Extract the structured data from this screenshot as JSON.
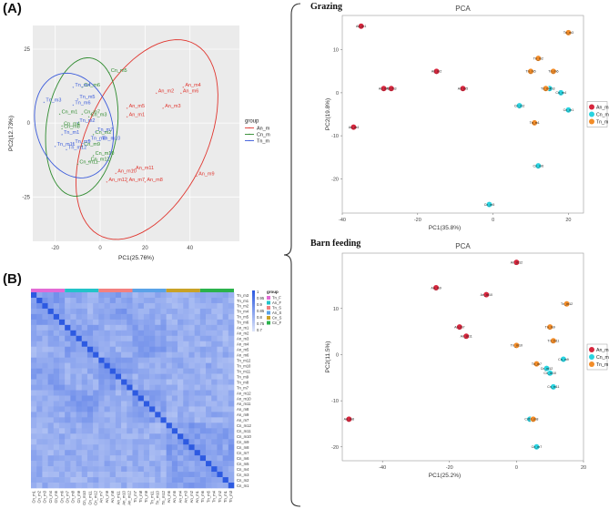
{
  "panels": {
    "a_label": "(A)",
    "b_label": "(B)"
  },
  "sections": {
    "grazing": "Grazing",
    "barn": "Barn feeding"
  },
  "chart_data": [
    {
      "id": "pca_a",
      "type": "scatter",
      "title": "",
      "xlabel": "PC1(25.76%)",
      "ylabel": "PC2(12.73%)",
      "xlim": [
        -30,
        62
      ],
      "ylim": [
        -40,
        33
      ],
      "xticks": [
        -20,
        0,
        20,
        40
      ],
      "yticks": [
        -25,
        0,
        25
      ],
      "legend_title": "group",
      "series": [
        {
          "name": "An_m",
          "color": "#e0362f",
          "points": [
            {
              "label": "An_m1",
              "x": 12,
              "y": 2
            },
            {
              "label": "An_m2",
              "x": 25,
              "y": 10
            },
            {
              "label": "An_m3",
              "x": 28,
              "y": 5
            },
            {
              "label": "An_m4",
              "x": 37,
              "y": 12
            },
            {
              "label": "An_m5",
              "x": 12,
              "y": 5
            },
            {
              "label": "An_m6",
              "x": 36,
              "y": 10
            },
            {
              "label": "An_m7",
              "x": 12,
              "y": -20
            },
            {
              "label": "An_m8",
              "x": 20,
              "y": -20
            },
            {
              "label": "An_m9",
              "x": 43,
              "y": -18
            },
            {
              "label": "An_m10",
              "x": 7,
              "y": -17
            },
            {
              "label": "An_m11",
              "x": 15,
              "y": -16
            },
            {
              "label": "An_m12",
              "x": 3,
              "y": -20
            }
          ]
        },
        {
          "name": "Cn_m",
          "color": "#2e8b2e",
          "points": [
            {
              "label": "Cn_m1",
              "x": -18,
              "y": 3
            },
            {
              "label": "Cn_m2",
              "x": -3,
              "y": -4
            },
            {
              "label": "Cn_m3",
              "x": -5,
              "y": 2
            },
            {
              "label": "Cn_m4",
              "x": -17,
              "y": -1
            },
            {
              "label": "Cn_m5",
              "x": 4,
              "y": 17
            },
            {
              "label": "Cn_m6",
              "x": -8,
              "y": 12
            },
            {
              "label": "Cn_m7",
              "x": -8,
              "y": 3
            },
            {
              "label": "Cn_m8",
              "x": -17,
              "y": -2
            },
            {
              "label": "Cn_m9",
              "x": -8,
              "y": -8
            },
            {
              "label": "Cn_m10",
              "x": -3,
              "y": -11
            },
            {
              "label": "Cn_m11",
              "x": -10,
              "y": -14
            },
            {
              "label": "Cn_m12",
              "x": -5,
              "y": -13
            }
          ]
        },
        {
          "name": "Tn_m",
          "color": "#3b5bdb",
          "points": [
            {
              "label": "Tn_m1",
              "x": -17,
              "y": -4
            },
            {
              "label": "Tn_m2",
              "x": -10,
              "y": 0
            },
            {
              "label": "Tn_m3",
              "x": -25,
              "y": 7
            },
            {
              "label": "Tn_m4",
              "x": -12,
              "y": 12
            },
            {
              "label": "Tn_m5",
              "x": -10,
              "y": 8
            },
            {
              "label": "Tn_m6",
              "x": -12,
              "y": 6
            },
            {
              "label": "Tn_m7",
              "x": -2,
              "y": -3
            },
            {
              "label": "Tn_m8",
              "x": -5,
              "y": -6
            },
            {
              "label": "Tn_m9",
              "x": -12,
              "y": -7
            },
            {
              "label": "Tn_m10",
              "x": 0,
              "y": -6
            },
            {
              "label": "Tn_m11",
              "x": -20,
              "y": -8
            },
            {
              "label": "Tn_m12",
              "x": -15,
              "y": -9
            }
          ]
        }
      ]
    },
    {
      "id": "heatmap_b",
      "type": "heatmap",
      "legend_title": "group",
      "scale_ticks": [
        "1",
        "0.95",
        "0.9",
        "0.85",
        "0.8",
        "0.75",
        "0.7"
      ],
      "groups": [
        {
          "name": "Tn_F",
          "color": "#e36bd5"
        },
        {
          "name": "An_F",
          "color": "#23c3c9"
        },
        {
          "name": "Tn_S",
          "color": "#f28080"
        },
        {
          "name": "An_S",
          "color": "#5aa3e8"
        },
        {
          "name": "Cn_S",
          "color": "#c9a227"
        },
        {
          "name": "Cn_F",
          "color": "#2bb24c"
        }
      ],
      "row_labels": [
        "Tn_m3",
        "Tn_m1",
        "Tn_m2",
        "Tn_m4",
        "Tn_m5",
        "Tn_m6",
        "An_m1",
        "An_m2",
        "An_m3",
        "An_m4",
        "An_m5",
        "An_m6",
        "Tn_m12",
        "Tn_m10",
        "Tn_m11",
        "Tn_m9",
        "Tn_m8",
        "Tn_m7",
        "An_m12",
        "An_m10",
        "An_m11",
        "An_m8",
        "An_m9",
        "An_m7",
        "Cn_m12",
        "Cn_m11",
        "Cn_m10",
        "Cn_m9",
        "Cn_m8",
        "Cn_m7",
        "Cn_m6",
        "Cn_m5",
        "Cn_m4",
        "Cn_m3",
        "Cn_m2",
        "Cn_m1"
      ]
    },
    {
      "id": "pca_grazing",
      "type": "scatter",
      "title": "PCA",
      "xlabel": "PC1(35.8%)",
      "ylabel": "PC2(19.8%)",
      "xlim": [
        -40,
        24
      ],
      "ylim": [
        -28,
        18
      ],
      "xticks": [
        -40,
        -20,
        0,
        20
      ],
      "yticks": [
        -20,
        -10,
        0,
        10
      ],
      "series": [
        {
          "name": "An_m",
          "color": "#d7263d",
          "points": [
            {
              "label": "An_m1",
              "x": -35,
              "y": 15.5
            },
            {
              "label": "An_m2",
              "x": -15,
              "y": 5
            },
            {
              "label": "An_m3",
              "x": -27,
              "y": 1
            },
            {
              "label": "An_m4",
              "x": -37,
              "y": -8
            },
            {
              "label": "An_m5",
              "x": -8,
              "y": 1
            },
            {
              "label": "An_m6",
              "x": -29,
              "y": 1
            }
          ]
        },
        {
          "name": "Cn_m",
          "color": "#29d3e0",
          "points": [
            {
              "label": "Cn_m1",
              "x": 20,
              "y": -4
            },
            {
              "label": "Cn_m2",
              "x": 7,
              "y": -3
            },
            {
              "label": "Cn_m3",
              "x": 15,
              "y": 1
            },
            {
              "label": "Cn_m4",
              "x": 18,
              "y": 0
            },
            {
              "label": "Cn_m5",
              "x": -1,
              "y": -26
            },
            {
              "label": "Cn_m6",
              "x": 12,
              "y": -17
            }
          ]
        },
        {
          "name": "Tn_m",
          "color": "#f28c28",
          "points": [
            {
              "label": "Tn_m1",
              "x": 11,
              "y": -7
            },
            {
              "label": "Tn_m2",
              "x": 12,
              "y": 8
            },
            {
              "label": "Tn_m3",
              "x": 20,
              "y": 14
            },
            {
              "label": "Tn_m4",
              "x": 14,
              "y": 1
            },
            {
              "label": "Tn_m5",
              "x": 10,
              "y": 5
            },
            {
              "label": "Tn_m6",
              "x": 16,
              "y": 5
            }
          ]
        }
      ]
    },
    {
      "id": "pca_barn",
      "type": "scatter",
      "title": "PCA",
      "xlabel": "PC1(25.2%)",
      "ylabel": "PC2(11.5%)",
      "xlim": [
        -52,
        20
      ],
      "ylim": [
        -23,
        22
      ],
      "xticks": [
        -40,
        -20,
        0,
        20
      ],
      "yticks": [
        -20,
        -10,
        0,
        10
      ],
      "series": [
        {
          "name": "An_m",
          "color": "#d7263d",
          "points": [
            {
              "label": "An_m7",
              "x": -17,
              "y": 6
            },
            {
              "label": "An_m8",
              "x": -50,
              "y": -14
            },
            {
              "label": "An_m9",
              "x": -24,
              "y": 14.5
            },
            {
              "label": "An_m10",
              "x": -9,
              "y": 13
            },
            {
              "label": "An_m11",
              "x": -15,
              "y": 4
            },
            {
              "label": "An_m12",
              "x": 0,
              "y": 20
            }
          ]
        },
        {
          "name": "Cn_m",
          "color": "#29d3e0",
          "points": [
            {
              "label": "Cn_m7",
              "x": 6,
              "y": -20
            },
            {
              "label": "Cn_m8",
              "x": 4,
              "y": -14
            },
            {
              "label": "Cn_m9",
              "x": 14,
              "y": -1
            },
            {
              "label": "Cn_m10",
              "x": 10,
              "y": -4
            },
            {
              "label": "Cn_m11",
              "x": 11,
              "y": -7
            },
            {
              "label": "Cn_m12",
              "x": 9,
              "y": -3
            }
          ]
        },
        {
          "name": "Tn_m",
          "color": "#f28c28",
          "points": [
            {
              "label": "Tn_m7",
              "x": 6,
              "y": -2
            },
            {
              "label": "Tn_m8",
              "x": 5,
              "y": -14
            },
            {
              "label": "Tn_m9",
              "x": 10,
              "y": 6
            },
            {
              "label": "Tn_m10",
              "x": 0,
              "y": 2
            },
            {
              "label": "Tn_m11",
              "x": 11,
              "y": 3
            },
            {
              "label": "Tn_m12",
              "x": 15,
              "y": 11
            }
          ]
        }
      ]
    }
  ]
}
